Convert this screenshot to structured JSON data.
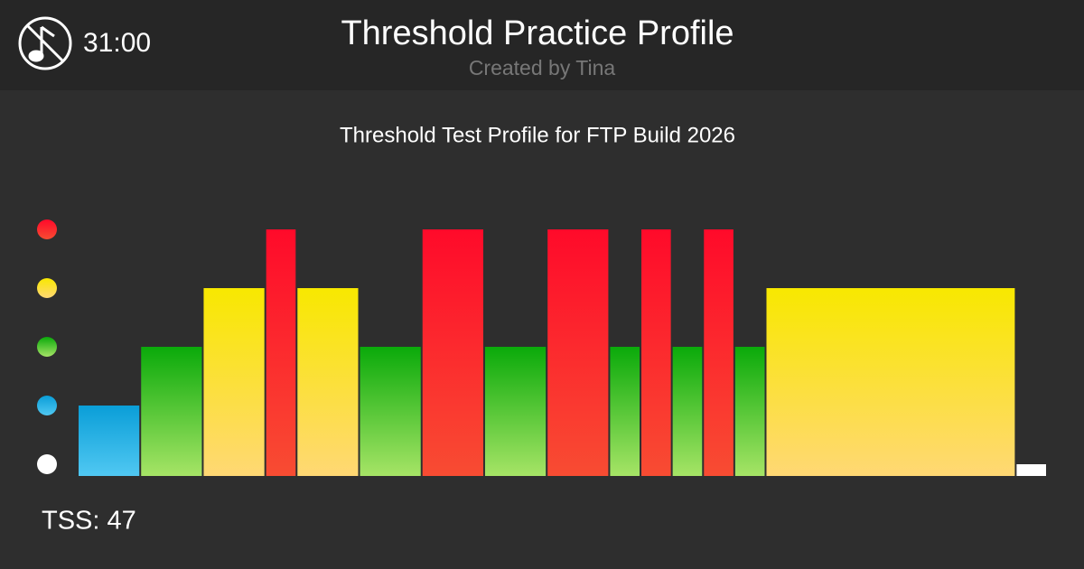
{
  "header": {
    "time": "31:00",
    "title": "Threshold Practice Profile",
    "subtitle": "Created by Tina"
  },
  "chart_data": {
    "type": "bar",
    "title": "Threshold Test Profile for FTP Build 2026",
    "values": [
      2,
      3,
      4,
      5,
      4,
      3,
      5,
      3,
      5,
      3,
      5,
      3,
      5,
      3,
      4,
      1
    ],
    "durations": [
      2,
      2,
      2,
      1,
      2,
      2,
      2,
      2,
      2,
      1,
      1,
      1,
      1,
      1,
      8,
      1
    ],
    "xlim": [
      0,
      31
    ],
    "ylim": [
      0.8,
      5
    ],
    "yticks": [
      1,
      2,
      3,
      4,
      5
    ],
    "zone_colors": [
      [
        "#ffffff",
        "#ffffff"
      ],
      [
        "#0a9ed8",
        "#50c8f2"
      ],
      [
        "#0aaa0a",
        "#a6e466"
      ],
      [
        "#f8e800",
        "#ffd874"
      ],
      [
        "#ff0a2a",
        "#f84c32"
      ]
    ]
  },
  "footer": {
    "tss": "TSS: 47"
  }
}
